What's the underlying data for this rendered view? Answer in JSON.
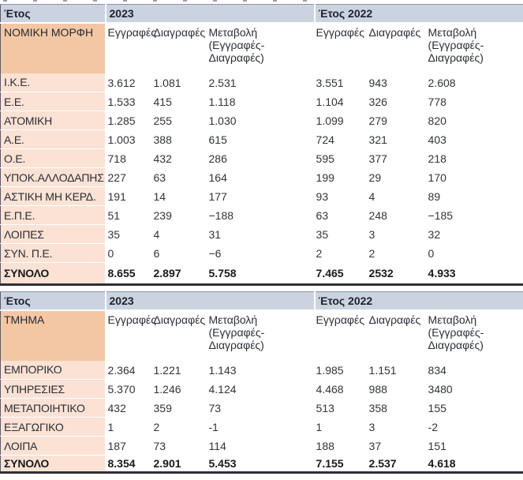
{
  "colors": {
    "year_header_bg": "#ccd3e0",
    "category_header_bg": "#f4c7a4",
    "row_label_bg": "#fbe2d4",
    "table_side_border": "#5b5b66",
    "table_bottom_border": "#2e2e38"
  },
  "chart_data": [
    {
      "type": "table",
      "year_row": {
        "label": "Έτος",
        "y2023": "2023",
        "y2022": "Έτος 2022"
      },
      "category_label": "ΝΟΜΙΚΗ ΜΟΡΦΗ",
      "col_headers": {
        "registrations": "Εγγραφές",
        "deletions": "Διαγραφές",
        "change": "Μεταβολή\n(Εγγραφές-\nΔιαγραφές)"
      },
      "rows": [
        {
          "label": "Ι.Κ.Ε.",
          "y2023": [
            "3.612",
            "1.081",
            "2.531"
          ],
          "y2022": [
            "3.551",
            "943",
            "2.608"
          ]
        },
        {
          "label": "Ε.Ε.",
          "y2023": [
            "1.533",
            "415",
            "1.118"
          ],
          "y2022": [
            "1.104",
            "326",
            "778"
          ]
        },
        {
          "label": "ΑΤΟΜΙΚΗ",
          "y2023": [
            "1.285",
            "255",
            "1.030"
          ],
          "y2022": [
            "1.099",
            "279",
            "820"
          ]
        },
        {
          "label": "Α.Ε.",
          "y2023": [
            "1.003",
            "388",
            "615"
          ],
          "y2022": [
            "724",
            "321",
            "403"
          ]
        },
        {
          "label": "Ο.Ε.",
          "y2023": [
            "718",
            "432",
            "286"
          ],
          "y2022": [
            "595",
            "377",
            "218"
          ]
        },
        {
          "label": "ΥΠΟΚ.ΑΛΛΟΔΑΠΗΣ",
          "y2023": [
            "227",
            "63",
            "164"
          ],
          "y2022": [
            "199",
            "29",
            "170"
          ]
        },
        {
          "label": "ΑΣΤΙΚΗ ΜΗ ΚΕΡΔ.",
          "y2023": [
            "191",
            "14",
            "177"
          ],
          "y2022": [
            "93",
            "4",
            "89"
          ]
        },
        {
          "label": "Ε.Π.Ε.",
          "y2023": [
            "51",
            "239",
            "−188"
          ],
          "y2022": [
            "63",
            "248",
            "−185"
          ]
        },
        {
          "label": "ΛΟΙΠΕΣ",
          "y2023": [
            "35",
            "4",
            "31"
          ],
          "y2022": [
            "35",
            "3",
            "32"
          ]
        },
        {
          "label": "ΣΥΝ. Π.Ε.",
          "y2023": [
            "0",
            "6",
            "−6"
          ],
          "y2022": [
            "2",
            "2",
            "0"
          ]
        }
      ],
      "total": {
        "label": "ΣΥΝΟΛΟ",
        "y2023": [
          "8.655",
          "2.897",
          "5.758"
        ],
        "y2022": [
          "7.465",
          "2532",
          "4.933"
        ]
      }
    },
    {
      "type": "table",
      "year_row": {
        "label": "Έτος",
        "y2023": "2023",
        "y2022": "Έτος 2022"
      },
      "category_label": "ΤΜΗΜΑ",
      "col_headers": {
        "registrations": "Εγγραφές",
        "deletions": "Διαγραφές",
        "change": "Μεταβολή\n(Εγγραφές-\nΔιαγραφές)"
      },
      "rows": [
        {
          "label": "ΕΜΠΟΡΙΚΟ",
          "y2023": [
            "2.364",
            "1.221",
            "1.143"
          ],
          "y2022": [
            "1.985",
            "1.151",
            "834"
          ]
        },
        {
          "label": "ΥΠΗΡΕΣΙΕΣ",
          "y2023": [
            "5.370",
            "1.246",
            "4.124"
          ],
          "y2022": [
            "4.468",
            "988",
            "3480"
          ]
        },
        {
          "label": "ΜΕΤΑΠΟΙΗΤΙΚΟ",
          "y2023": [
            "432",
            "359",
            "73"
          ],
          "y2022": [
            "513",
            "358",
            "155"
          ]
        },
        {
          "label": "ΕΞΑΓΩΓΙΚΟ",
          "y2023": [
            "1",
            "2",
            "-1"
          ],
          "y2022": [
            "1",
            "3",
            "-2"
          ]
        },
        {
          "label": "ΛΟΙΠΑ",
          "y2023": [
            "187",
            "73",
            "114"
          ],
          "y2022": [
            "188",
            "37",
            "151"
          ]
        }
      ],
      "total": {
        "label": "ΣΥΝΟΛΟ",
        "y2023": [
          "8.354",
          "2.901",
          "5.453"
        ],
        "y2022": [
          "7.155",
          "2.537",
          "4.618"
        ]
      }
    }
  ]
}
